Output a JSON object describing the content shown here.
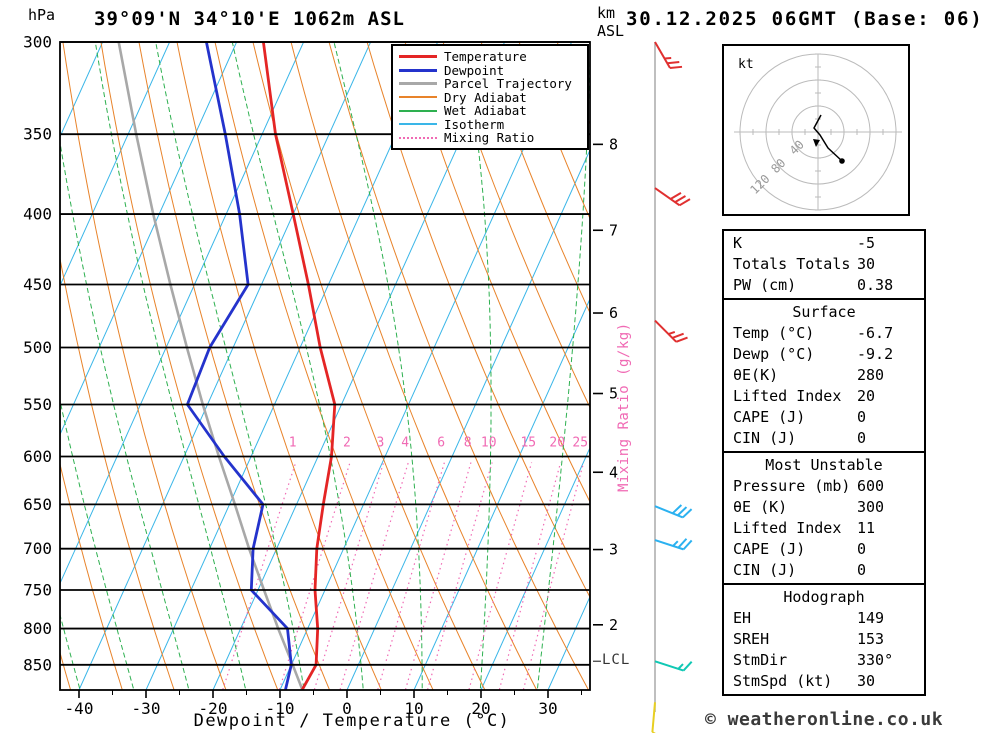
{
  "header": {
    "y_axis_unit": "hPa",
    "title": "39°09'N 34°10'E 1062m ASL",
    "right_axis_unit_line1": "km",
    "right_axis_unit_line2": "ASL",
    "datetime": "30.12.2025 06GMT (Base: 06)"
  },
  "chart_data": {
    "type": "line",
    "subtype": "skew-t-log-p-sounding",
    "skewt": {
      "xlabel": "Dewpoint / Temperature (°C)",
      "pressure_axis_range": [
        300,
        886
      ],
      "temp_axis_range": [
        -45,
        38
      ],
      "pressure_ticks": [
        300,
        350,
        400,
        450,
        500,
        550,
        600,
        650,
        700,
        750,
        800,
        850
      ],
      "temp_ticks": [
        -40,
        -30,
        -20,
        -10,
        0,
        10,
        20,
        30
      ],
      "km_ticks": [
        2,
        3,
        4,
        5,
        6,
        7,
        8
      ],
      "mixing_ratio_labels": [
        1,
        2,
        3,
        4,
        6,
        8,
        10,
        15,
        20,
        25
      ],
      "mixing_ratio_axis_label": "Mixing Ratio (g/kg)",
      "lcl_label": "LCL",
      "lcl_pressure": 845,
      "temperature_profile": [
        [
          886,
          -6.7
        ],
        [
          850,
          -6.3
        ],
        [
          800,
          -8.5
        ],
        [
          750,
          -11.5
        ],
        [
          700,
          -14
        ],
        [
          650,
          -16
        ],
        [
          600,
          -18
        ],
        [
          550,
          -21
        ],
        [
          500,
          -27
        ],
        [
          450,
          -33
        ],
        [
          400,
          -40
        ],
        [
          350,
          -48
        ],
        [
          300,
          -56
        ]
      ],
      "dewpoint_profile": [
        [
          886,
          -9.2
        ],
        [
          850,
          -10
        ],
        [
          800,
          -13
        ],
        [
          750,
          -21
        ],
        [
          700,
          -23.5
        ],
        [
          650,
          -25
        ],
        [
          600,
          -34
        ],
        [
          550,
          -43
        ],
        [
          500,
          -43.5
        ],
        [
          450,
          -42
        ],
        [
          400,
          -48
        ],
        [
          350,
          -55.5
        ],
        [
          300,
          -64.5
        ]
      ],
      "parcel_profile": [
        [
          886,
          -6.7
        ],
        [
          850,
          -9.8
        ],
        [
          800,
          -14.4
        ],
        [
          750,
          -19.1
        ],
        [
          700,
          -24.1
        ],
        [
          650,
          -29.2
        ],
        [
          600,
          -34.8
        ],
        [
          550,
          -40.7
        ],
        [
          500,
          -46.9
        ],
        [
          450,
          -53.6
        ],
        [
          400,
          -60.9
        ],
        [
          350,
          -68.8
        ],
        [
          300,
          -77.6
        ]
      ],
      "colors": {
        "temperature": "#e42525",
        "dewpoint": "#2433cc",
        "parcel": "#a8a8a8",
        "dry_adiabat": "#e8832a",
        "wet_adiabat": "#2eb050",
        "isotherm": "#3ab6e8",
        "mixing_ratio": "#f06ab4",
        "isobar": "#000000",
        "barb_axis": "#aaaaaa"
      }
    },
    "legend": [
      {
        "label": "Temperature",
        "color": "#e42525",
        "style": "solid",
        "width": 3
      },
      {
        "label": "Dewpoint",
        "color": "#2433cc",
        "style": "solid",
        "width": 3
      },
      {
        "label": "Parcel Trajectory",
        "color": "#a8a8a8",
        "style": "solid",
        "width": 3
      },
      {
        "label": "Dry Adiabat",
        "color": "#e8832a",
        "style": "solid",
        "width": 2
      },
      {
        "label": "Wet Adiabat",
        "color": "#2eb050",
        "style": "solid",
        "width": 2
      },
      {
        "label": "Isotherm",
        "color": "#3ab6e8",
        "style": "solid",
        "width": 2
      },
      {
        "label": "Mixing Ratio",
        "color": "#f06ab4",
        "style": "dotted",
        "width": 2
      }
    ],
    "wind_barbs": [
      {
        "pressure": 300,
        "color": "#e03030",
        "angle": 150,
        "full": 2,
        "half": 1
      },
      {
        "pressure": 383,
        "color": "#e03030",
        "angle": 125,
        "full": 3,
        "half": 0
      },
      {
        "pressure": 478,
        "color": "#e03030",
        "angle": 135,
        "full": 2,
        "half": 1
      },
      {
        "pressure": 652,
        "color": "#2bb1f0",
        "angle": 112,
        "full": 3,
        "half": 0
      },
      {
        "pressure": 690,
        "color": "#2bb1f0",
        "angle": 108,
        "full": 2,
        "half": 1
      },
      {
        "pressure": 845,
        "color": "#10c8b4",
        "angle": 108,
        "full": 1,
        "half": 1
      },
      {
        "pressure": 905,
        "color": "#e8cf20",
        "angle": 185,
        "full": 1,
        "half": 0
      }
    ],
    "hodograph": {
      "unit_label": "kt",
      "rings_kt": [
        40,
        80,
        120
      ],
      "ring_labels": [
        "120",
        "80",
        "40"
      ],
      "trace": [
        [
          3,
          -17
        ],
        [
          -4,
          -4
        ],
        [
          2,
          3
        ],
        [
          10,
          16
        ],
        [
          24,
          29
        ]
      ]
    }
  },
  "stats_table": {
    "top": [
      [
        "K",
        "-5"
      ],
      [
        "Totals Totals",
        "30"
      ],
      [
        "PW (cm)",
        "0.38"
      ]
    ],
    "sections": [
      {
        "header": "Surface",
        "rows": [
          [
            "Temp (°C)",
            "-6.7"
          ],
          [
            "Dewp (°C)",
            "-9.2"
          ],
          [
            "θE(K)",
            "280"
          ],
          [
            "Lifted Index",
            "20"
          ],
          [
            "CAPE (J)",
            "0"
          ],
          [
            "CIN (J)",
            "0"
          ]
        ]
      },
      {
        "header": "Most Unstable",
        "rows": [
          [
            "Pressure (mb)",
            "600"
          ],
          [
            "θE (K)",
            "300"
          ],
          [
            "Lifted Index",
            "11"
          ],
          [
            "CAPE (J)",
            "0"
          ],
          [
            "CIN (J)",
            "0"
          ]
        ]
      },
      {
        "header": "Hodograph",
        "rows": [
          [
            "EH",
            "149"
          ],
          [
            "SREH",
            "153"
          ],
          [
            "StmDir",
            "330°"
          ],
          [
            "StmSpd (kt)",
            "30"
          ]
        ]
      }
    ]
  },
  "footer": {
    "copyright": "© weatheronline.co.uk"
  }
}
